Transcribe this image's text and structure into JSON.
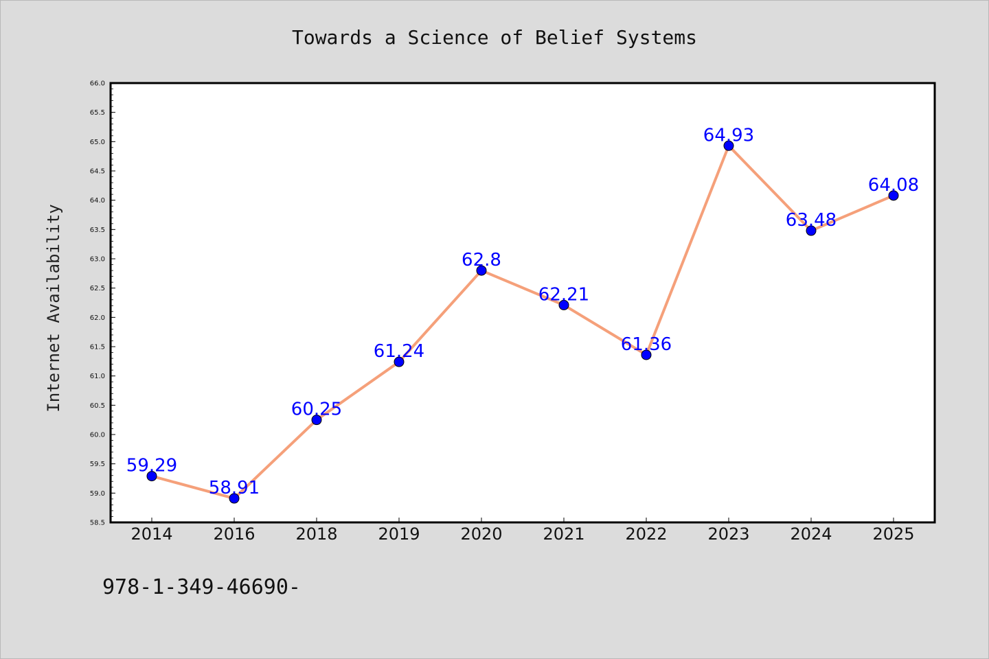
{
  "chart_data": {
    "type": "line",
    "title": "Towards a Science of Belief Systems",
    "xlabel": "",
    "ylabel": "Internet Availability",
    "categories": [
      "2014",
      "2016",
      "2018",
      "2019",
      "2020",
      "2021",
      "2022",
      "2023",
      "2024",
      "2025"
    ],
    "series": [
      {
        "values": [
          59.29,
          58.91,
          60.25,
          61.24,
          62.8,
          62.21,
          61.36,
          64.93,
          63.48,
          64.08
        ],
        "data_labels": [
          "59.29",
          "58.91",
          "60.25",
          "61.24",
          "62.8",
          "62.21",
          "61.36",
          "64.93",
          "63.48",
          "64.08"
        ],
        "line_color": "#f5a07a",
        "marker_color": "#0000ff",
        "label_color": "#0000ff"
      }
    ],
    "ylim": [
      58.5,
      66.0
    ],
    "yticks": [
      "58.5",
      "59.0",
      "59.5",
      "60.0",
      "60.5",
      "61.0",
      "61.5",
      "62.0",
      "62.5",
      "63.0",
      "63.5",
      "64.0",
      "64.5",
      "65.0",
      "65.5",
      "66.0"
    ],
    "grid": false,
    "legend": "none",
    "background_color": "#dcdcdc",
    "plot_background": "#ffffff"
  },
  "footer": {
    "text": "978-1-349-46690-"
  }
}
